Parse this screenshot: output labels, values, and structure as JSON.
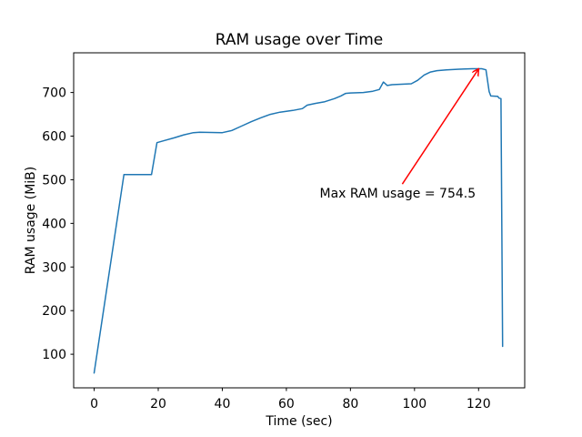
{
  "chart_data": {
    "type": "line",
    "title": "RAM usage over Time",
    "xlabel": "Time (sec)",
    "ylabel": "RAM usage (MiB)",
    "x_ticks": [
      0,
      20,
      40,
      60,
      80,
      100,
      120
    ],
    "y_ticks": [
      100,
      200,
      300,
      400,
      500,
      600,
      700
    ],
    "xlim": [
      -6.4,
      134.4
    ],
    "ylim": [
      23,
      791
    ],
    "grid": false,
    "legend": null,
    "background_color": "#ffffff",
    "spine_color": "#000000",
    "series": [
      {
        "name": "RAM usage",
        "color": "#1f77b4",
        "max_value": 754.5,
        "points": [
          [
            0,
            57
          ],
          [
            9.3,
            512
          ],
          [
            17.9,
            512
          ],
          [
            19.6,
            585
          ],
          [
            22,
            590
          ],
          [
            25,
            596
          ],
          [
            28,
            603
          ],
          [
            31,
            608
          ],
          [
            33,
            609
          ],
          [
            40,
            608
          ],
          [
            43,
            613
          ],
          [
            46,
            623
          ],
          [
            49,
            633
          ],
          [
            52,
            642
          ],
          [
            55,
            650
          ],
          [
            58,
            655
          ],
          [
            62,
            659
          ],
          [
            65,
            663
          ],
          [
            66.5,
            671
          ],
          [
            69,
            675
          ],
          [
            72,
            679
          ],
          [
            75,
            686
          ],
          [
            77,
            692
          ],
          [
            78.5,
            698
          ],
          [
            80,
            699
          ],
          [
            84,
            700
          ],
          [
            87,
            703
          ],
          [
            89,
            707
          ],
          [
            90.3,
            724
          ],
          [
            91.5,
            716
          ],
          [
            93,
            718
          ],
          [
            99,
            720
          ],
          [
            101,
            728
          ],
          [
            103,
            740
          ],
          [
            105,
            747
          ],
          [
            107,
            750
          ],
          [
            110,
            752
          ],
          [
            114,
            753.5
          ],
          [
            118,
            754.5
          ],
          [
            121,
            754.5
          ],
          [
            122.3,
            752
          ],
          [
            123.3,
            702
          ],
          [
            123.8,
            692
          ],
          [
            126,
            691
          ],
          [
            126.4,
            687
          ],
          [
            127,
            686
          ],
          [
            127.5,
            118
          ]
        ]
      }
    ],
    "annotation": {
      "text": "Max RAM usage = 754.5",
      "color": "#ff0000",
      "text_xy": [
        70.4,
        459
      ],
      "arrow_from": [
        96.2,
        490
      ],
      "arrow_to": [
        120,
        754
      ]
    }
  }
}
